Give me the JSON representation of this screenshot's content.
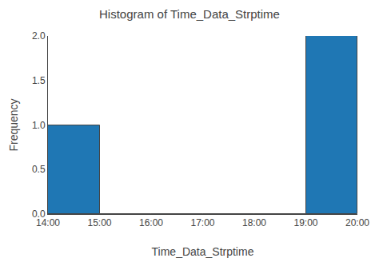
{
  "chart_data": {
    "type": "histogram",
    "title": "Histogram of Time_Data_Strptime",
    "xlabel": "Time_Data_Strptime",
    "ylabel": "Frequency",
    "bins": [
      14,
      15,
      16,
      17,
      18,
      19,
      20
    ],
    "values": [
      1,
      0,
      0,
      0,
      0,
      2
    ],
    "xlim": [
      14,
      20
    ],
    "xticks": [
      {
        "value": 14,
        "label": "14:00"
      },
      {
        "value": 15,
        "label": "15:00"
      },
      {
        "value": 16,
        "label": "16:00"
      },
      {
        "value": 17,
        "label": "17:00"
      },
      {
        "value": 18,
        "label": "18:00"
      },
      {
        "value": 19,
        "label": "19:00"
      },
      {
        "value": 20,
        "label": "20:00"
      }
    ],
    "ylim": [
      0.0,
      2.0
    ],
    "yticks": [
      {
        "value": 0.0,
        "label": "0.0"
      },
      {
        "value": 0.5,
        "label": "0.5"
      },
      {
        "value": 1.0,
        "label": "1.0"
      },
      {
        "value": 1.5,
        "label": "1.5"
      },
      {
        "value": 2.0,
        "label": "2.0"
      }
    ],
    "grid": false
  }
}
